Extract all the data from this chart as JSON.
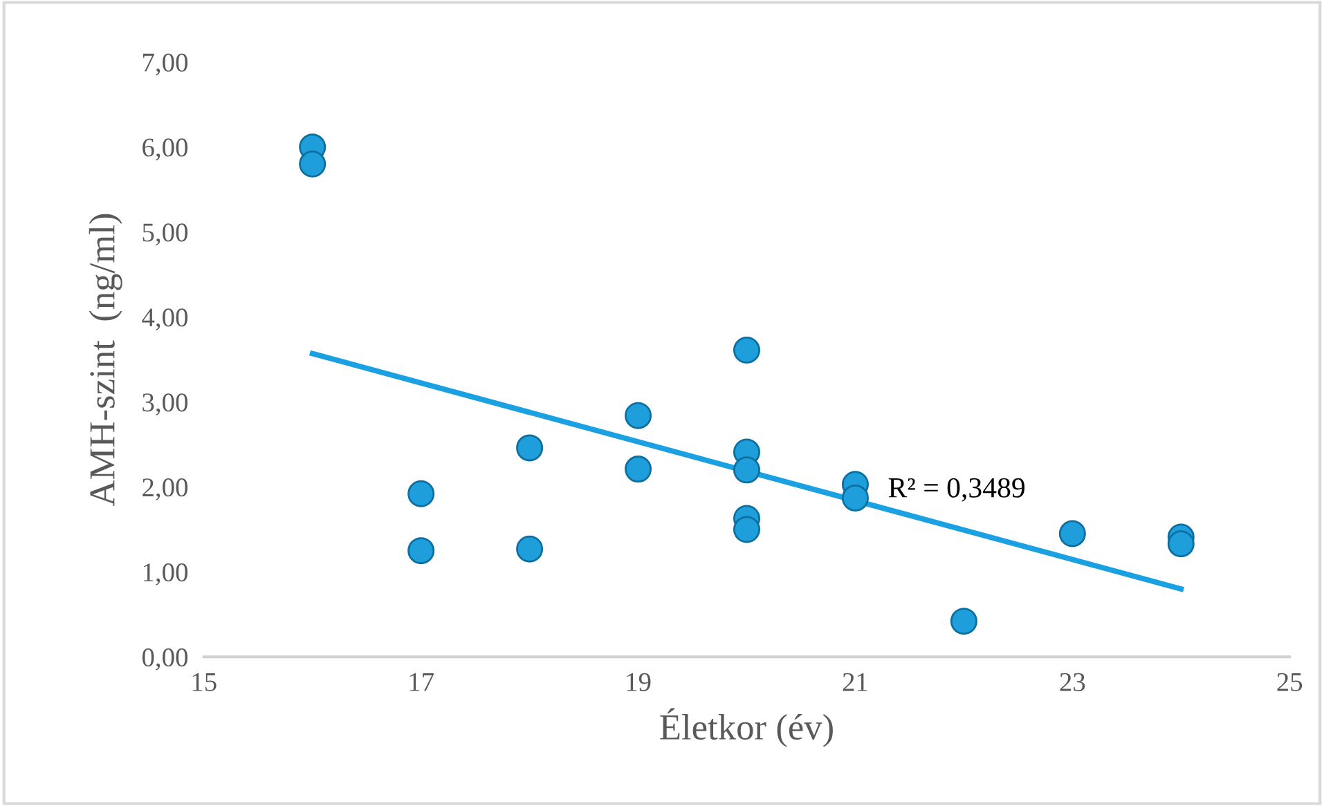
{
  "chart_data": {
    "type": "scatter",
    "xlabel": "Életkor (év)",
    "ylabel": "AMH-szint  (ng/ml)",
    "xlim": [
      15,
      25
    ],
    "xticks": [
      15,
      17,
      19,
      21,
      23,
      25
    ],
    "ylim": [
      0,
      7
    ],
    "yticks": [
      {
        "value": 0,
        "label": "0,00"
      },
      {
        "value": 1,
        "label": "1,00"
      },
      {
        "value": 2,
        "label": "2,00"
      },
      {
        "value": 3,
        "label": "3,00"
      },
      {
        "value": 4,
        "label": "4,00"
      },
      {
        "value": 5,
        "label": "5,00"
      },
      {
        "value": 6,
        "label": "6,00"
      },
      {
        "value": 7,
        "label": "7,00"
      }
    ],
    "grid": false,
    "series": [
      {
        "marker": "circle",
        "color": "#1e9fdc",
        "x": [
          16,
          16,
          17,
          17,
          18,
          18,
          19,
          19,
          20,
          20,
          20,
          20,
          20,
          21,
          21,
          22,
          23,
          24,
          24
        ],
        "values": [
          6.0,
          5.8,
          1.92,
          1.25,
          2.46,
          1.27,
          2.84,
          2.21,
          3.61,
          2.41,
          2.2,
          1.63,
          1.5,
          2.03,
          1.87,
          0.42,
          1.45,
          1.41,
          1.33
        ]
      },
      {
        "type": "line",
        "marker": "none",
        "color": "#1ba1e2",
        "line_style": "solid",
        "x": [
          16,
          24
        ],
        "values": [
          3.57,
          0.8
        ]
      }
    ],
    "annotations": [
      "R² = 0,3489"
    ]
  }
}
